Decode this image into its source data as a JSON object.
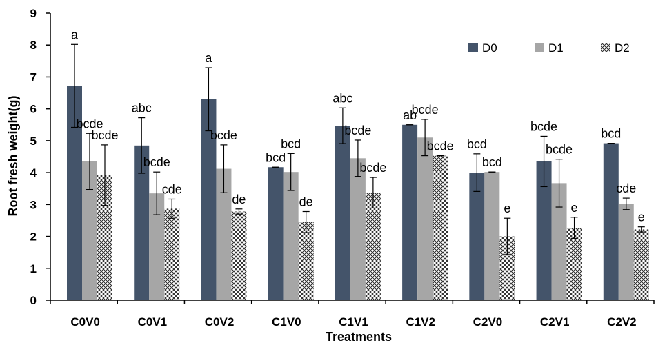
{
  "chart_data": {
    "type": "bar",
    "xlabel": "Treatments",
    "ylabel": "Root fresh weight(g)",
    "ylim": [
      0,
      9
    ],
    "yticks": [
      "0",
      "1",
      "2",
      "3",
      "4",
      "5",
      "6",
      "7",
      "8",
      "9"
    ],
    "categories": [
      "C0V0",
      "C0V1",
      "C0V2",
      "C1V0",
      "C1V1",
      "C1V2",
      "C2V0",
      "C2V1",
      "C2V2"
    ],
    "legend_position": "top-right",
    "grid": false,
    "series": [
      {
        "name": "D0",
        "color": "#44546a",
        "pattern": "solid",
        "values": [
          6.72,
          4.85,
          6.3,
          4.17,
          5.47,
          5.5,
          4.0,
          4.35,
          4.92
        ],
        "errors": [
          1.3,
          0.87,
          0.99,
          0.0,
          0.56,
          0.0,
          0.59,
          0.79,
          0.0
        ],
        "letters": [
          "a",
          "abc",
          "a",
          "bcd",
          "abc",
          "ab",
          "bcd",
          "bcde",
          "bcd"
        ]
      },
      {
        "name": "D1",
        "color": "#a6a6a6",
        "pattern": "solid",
        "values": [
          4.35,
          3.35,
          4.12,
          4.02,
          4.45,
          5.1,
          4.02,
          3.67,
          3.02
        ],
        "errors": [
          0.88,
          0.67,
          0.75,
          0.58,
          0.57,
          0.57,
          0.0,
          0.75,
          0.18
        ],
        "letters": [
          "bcde",
          "bcde",
          "bcde",
          "bcd",
          "bcde",
          "bcde",
          "bcd",
          "bcde",
          "cde"
        ]
      },
      {
        "name": "D2",
        "color": "#404040",
        "pattern": "crosshatch",
        "values": [
          3.92,
          2.87,
          2.78,
          2.45,
          3.37,
          4.53,
          2.0,
          2.27,
          2.22
        ],
        "errors": [
          0.95,
          0.3,
          0.08,
          0.33,
          0.48,
          0.0,
          0.57,
          0.33,
          0.08
        ],
        "letters": [
          "bcde",
          "cde",
          "de",
          "de",
          "bcde",
          "bcde",
          "e",
          "e",
          "e"
        ]
      }
    ]
  }
}
